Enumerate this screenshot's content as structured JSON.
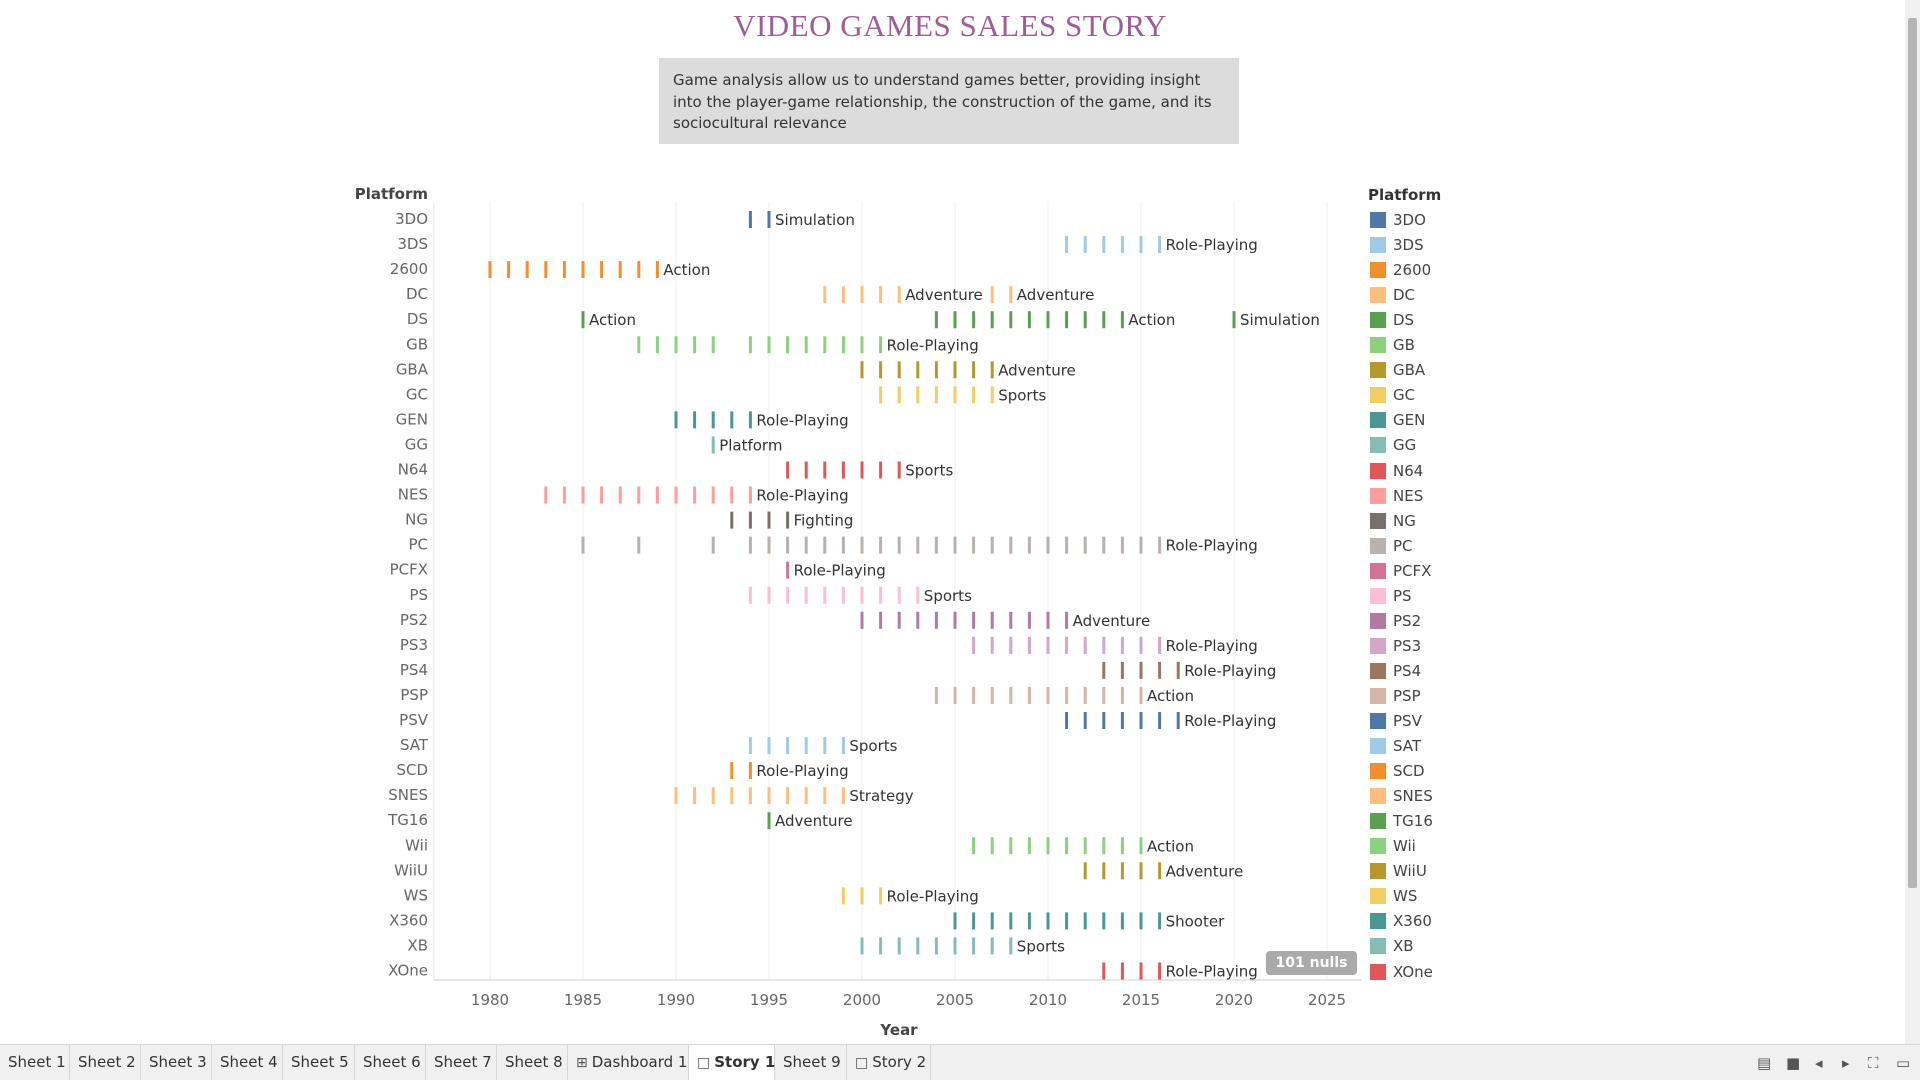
{
  "title": "VIDEO GAMES SALES STORY",
  "description": "Game analysis allow  us to understand games better, providing insight into the player-game relationship, the construction of the game, and its sociocultural relevance",
  "chart_data": {
    "type": "strip",
    "ylabel": "Platform",
    "xlabel": "Year",
    "xlim": [
      1977,
      2027
    ],
    "xticks": [
      1980,
      1985,
      1990,
      1995,
      2000,
      2005,
      2010,
      2015,
      2020,
      2025
    ],
    "legend_title": "Platform",
    "legend_position": "right",
    "null_badge": "101 nulls",
    "platforms": [
      {
        "name": "3DO",
        "color": "#4e79a7",
        "years": [
          1994,
          1995
        ],
        "labels": [
          {
            "year": 1995,
            "text": "Simulation"
          }
        ]
      },
      {
        "name": "3DS",
        "color": "#a0cbe8",
        "years": [
          2011,
          2012,
          2013,
          2014,
          2015,
          2016
        ],
        "labels": [
          {
            "year": 2016,
            "text": "Role-Playing"
          }
        ]
      },
      {
        "name": "2600",
        "color": "#f28e2b",
        "years": [
          1980,
          1981,
          1982,
          1983,
          1984,
          1985,
          1986,
          1987,
          1988,
          1989
        ],
        "labels": [
          {
            "year": 1989,
            "text": "Action"
          }
        ]
      },
      {
        "name": "DC",
        "color": "#ffbe7d",
        "years": [
          1998,
          1999,
          2000,
          2001,
          2002,
          2007,
          2008
        ],
        "labels": [
          {
            "year": 2002,
            "text": "Adventure"
          },
          {
            "year": 2008,
            "text": "Adventure"
          }
        ]
      },
      {
        "name": "DS",
        "color": "#59a14f",
        "years": [
          1985,
          2004,
          2005,
          2006,
          2007,
          2008,
          2009,
          2010,
          2011,
          2012,
          2013,
          2014,
          2020
        ],
        "labels": [
          {
            "year": 1985,
            "text": "Action"
          },
          {
            "year": 2014,
            "text": "Action"
          },
          {
            "year": 2020,
            "text": "Simulation"
          }
        ]
      },
      {
        "name": "GB",
        "color": "#8cd17d",
        "years": [
          1988,
          1989,
          1990,
          1991,
          1992,
          1994,
          1995,
          1996,
          1997,
          1998,
          1999,
          2000,
          2001
        ],
        "labels": [
          {
            "year": 2001,
            "text": "Role-Playing"
          }
        ]
      },
      {
        "name": "GBA",
        "color": "#b6992d",
        "years": [
          2000,
          2001,
          2002,
          2003,
          2004,
          2005,
          2006,
          2007
        ],
        "labels": [
          {
            "year": 2007,
            "text": "Adventure"
          }
        ]
      },
      {
        "name": "GC",
        "color": "#f1ce63",
        "years": [
          2001,
          2002,
          2003,
          2004,
          2005,
          2006,
          2007
        ],
        "labels": [
          {
            "year": 2007,
            "text": "Sports"
          }
        ]
      },
      {
        "name": "GEN",
        "color": "#499894",
        "years": [
          1990,
          1991,
          1992,
          1993,
          1994
        ],
        "labels": [
          {
            "year": 1994,
            "text": "Role-Playing"
          }
        ]
      },
      {
        "name": "GG",
        "color": "#86bcb6",
        "years": [
          1992
        ],
        "labels": [
          {
            "year": 1992,
            "text": "Platform"
          }
        ]
      },
      {
        "name": "N64",
        "color": "#e15759",
        "years": [
          1996,
          1997,
          1998,
          1999,
          2000,
          2001,
          2002
        ],
        "labels": [
          {
            "year": 2002,
            "text": "Sports"
          }
        ]
      },
      {
        "name": "NES",
        "color": "#ff9d9a",
        "years": [
          1983,
          1984,
          1985,
          1986,
          1987,
          1988,
          1989,
          1990,
          1991,
          1992,
          1993,
          1994
        ],
        "labels": [
          {
            "year": 1994,
            "text": "Role-Playing"
          }
        ]
      },
      {
        "name": "NG",
        "color": "#79706e",
        "years": [
          1993,
          1994,
          1995,
          1996
        ],
        "labels": [
          {
            "year": 1996,
            "text": "Fighting"
          }
        ]
      },
      {
        "name": "PC",
        "color": "#bab0ac",
        "years": [
          1985,
          1988,
          1992,
          1994,
          1995,
          1996,
          1997,
          1998,
          1999,
          2000,
          2001,
          2002,
          2003,
          2004,
          2005,
          2006,
          2007,
          2008,
          2009,
          2010,
          2011,
          2012,
          2013,
          2014,
          2015,
          2016
        ],
        "labels": [
          {
            "year": 2016,
            "text": "Role-Playing"
          }
        ]
      },
      {
        "name": "PCFX",
        "color": "#d37295",
        "years": [
          1996
        ],
        "labels": [
          {
            "year": 1996,
            "text": "Role-Playing"
          }
        ]
      },
      {
        "name": "PS",
        "color": "#fabfd2",
        "years": [
          1994,
          1995,
          1996,
          1997,
          1998,
          1999,
          2000,
          2001,
          2002,
          2003
        ],
        "labels": [
          {
            "year": 2003,
            "text": "Sports"
          }
        ]
      },
      {
        "name": "PS2",
        "color": "#b07aa1",
        "years": [
          2000,
          2001,
          2002,
          2003,
          2004,
          2005,
          2006,
          2007,
          2008,
          2009,
          2010,
          2011
        ],
        "labels": [
          {
            "year": 2011,
            "text": "Adventure"
          }
        ]
      },
      {
        "name": "PS3",
        "color": "#d4a6c8",
        "years": [
          2006,
          2007,
          2008,
          2009,
          2010,
          2011,
          2012,
          2013,
          2014,
          2015,
          2016
        ],
        "labels": [
          {
            "year": 2016,
            "text": "Role-Playing"
          }
        ]
      },
      {
        "name": "PS4",
        "color": "#9d7660",
        "years": [
          2013,
          2014,
          2015,
          2016,
          2017
        ],
        "labels": [
          {
            "year": 2017,
            "text": "Role-Playing"
          }
        ]
      },
      {
        "name": "PSP",
        "color": "#d7b5a6",
        "years": [
          2004,
          2005,
          2006,
          2007,
          2008,
          2009,
          2010,
          2011,
          2012,
          2013,
          2014,
          2015
        ],
        "labels": [
          {
            "year": 2015,
            "text": "Action"
          }
        ]
      },
      {
        "name": "PSV",
        "color": "#4e79a7",
        "years": [
          2011,
          2012,
          2013,
          2014,
          2015,
          2016,
          2017
        ],
        "labels": [
          {
            "year": 2017,
            "text": "Role-Playing"
          }
        ]
      },
      {
        "name": "SAT",
        "color": "#a0cbe8",
        "years": [
          1994,
          1995,
          1996,
          1997,
          1998,
          1999
        ],
        "labels": [
          {
            "year": 1999,
            "text": "Sports"
          }
        ]
      },
      {
        "name": "SCD",
        "color": "#f28e2b",
        "years": [
          1993,
          1994
        ],
        "labels": [
          {
            "year": 1994,
            "text": "Role-Playing"
          }
        ]
      },
      {
        "name": "SNES",
        "color": "#ffbe7d",
        "years": [
          1990,
          1991,
          1992,
          1993,
          1994,
          1995,
          1996,
          1997,
          1998,
          1999
        ],
        "labels": [
          {
            "year": 1999,
            "text": "Strategy"
          }
        ]
      },
      {
        "name": "TG16",
        "color": "#59a14f",
        "years": [
          1995
        ],
        "labels": [
          {
            "year": 1995,
            "text": "Adventure"
          }
        ]
      },
      {
        "name": "Wii",
        "color": "#8cd17d",
        "years": [
          2006,
          2007,
          2008,
          2009,
          2010,
          2011,
          2012,
          2013,
          2014,
          2015
        ],
        "labels": [
          {
            "year": 2015,
            "text": "Action"
          }
        ]
      },
      {
        "name": "WiiU",
        "color": "#b6992d",
        "years": [
          2012,
          2013,
          2014,
          2015,
          2016
        ],
        "labels": [
          {
            "year": 2016,
            "text": "Adventure"
          }
        ]
      },
      {
        "name": "WS",
        "color": "#f1ce63",
        "years": [
          1999,
          2000,
          2001
        ],
        "labels": [
          {
            "year": 2001,
            "text": "Role-Playing"
          }
        ]
      },
      {
        "name": "X360",
        "color": "#499894",
        "years": [
          2005,
          2006,
          2007,
          2008,
          2009,
          2010,
          2011,
          2012,
          2013,
          2014,
          2015,
          2016
        ],
        "labels": [
          {
            "year": 2016,
            "text": "Shooter"
          }
        ]
      },
      {
        "name": "XB",
        "color": "#86bcb6",
        "years": [
          2000,
          2001,
          2002,
          2003,
          2004,
          2005,
          2006,
          2007,
          2008
        ],
        "labels": [
          {
            "year": 2008,
            "text": "Sports"
          }
        ]
      },
      {
        "name": "XOne",
        "color": "#e15759",
        "years": [
          2013,
          2014,
          2015,
          2016
        ],
        "labels": [
          {
            "year": 2016,
            "text": "Role-Playing"
          }
        ]
      }
    ]
  },
  "tabs": [
    {
      "label": "Sheet 1",
      "icon": ""
    },
    {
      "label": "Sheet 2",
      "icon": ""
    },
    {
      "label": "Sheet 3",
      "icon": ""
    },
    {
      "label": "Sheet 4",
      "icon": ""
    },
    {
      "label": "Sheet 5",
      "icon": ""
    },
    {
      "label": "Sheet 6",
      "icon": ""
    },
    {
      "label": "Sheet 7",
      "icon": ""
    },
    {
      "label": "Sheet 8",
      "icon": ""
    },
    {
      "label": "Dashboard 1",
      "icon": "dashboard-icon"
    },
    {
      "label": "Story 1",
      "icon": "story-icon",
      "active": true
    },
    {
      "label": "Sheet 9",
      "icon": ""
    },
    {
      "label": "Story 2",
      "icon": "story-icon"
    }
  ],
  "controls": [
    "show-sheets-icon",
    "filmstrip-icon",
    "prev-icon",
    "next-icon",
    "fullscreen-icon",
    "present-icon"
  ]
}
